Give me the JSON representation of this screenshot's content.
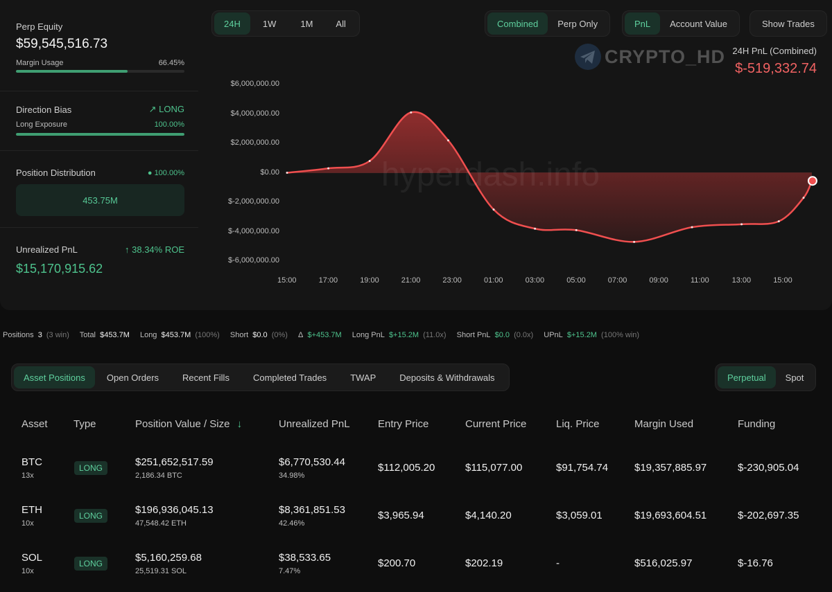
{
  "summary": {
    "perp_equity_label": "Perp Equity",
    "perp_equity": "$59,545,516.73",
    "margin_usage_label": "Margin Usage",
    "margin_usage": "66.45%",
    "margin_usage_fraction": 0.6645,
    "direction_bias_label": "Direction Bias",
    "direction_bias": "LONG",
    "long_exposure_label": "Long Exposure",
    "long_exposure": "100.00%",
    "long_exposure_fraction": 1.0,
    "position_distribution_label": "Position Distribution",
    "position_distribution_pct": "100.00%",
    "position_distribution_value": "453.75M",
    "unrealized_pnl_label": "Unrealized PnL",
    "roe": "38.34% ROE",
    "unrealized_pnl": "$15,170,915.62"
  },
  "range_tabs": [
    "24H",
    "1W",
    "1M",
    "All"
  ],
  "view_tabs": [
    "Combined",
    "Perp Only"
  ],
  "metric_tabs": [
    "PnL",
    "Account Value"
  ],
  "show_trades_label": "Show Trades",
  "watermark_brand": "CRYPTO_HD",
  "watermark_site": "hyperdash.info",
  "pnl_header": {
    "label": "24H PnL (Combined)",
    "value": "$-519,332.74"
  },
  "chart_data": {
    "type": "area",
    "title": "24H PnL (Combined)",
    "x": [
      "15:00",
      "17:00",
      "19:00",
      "21:00",
      "23:00",
      "01:00",
      "03:00",
      "05:00",
      "07:00",
      "09:00",
      "11:00",
      "13:00",
      "15:00"
    ],
    "y_ticks": [
      "$6,000,000.00",
      "$4,000,000.00",
      "$2,000,000.00",
      "$0.00",
      "$-2,000,000.00",
      "$-4,000,000.00",
      "$-6,000,000.00"
    ],
    "ylim": [
      -6000000,
      6000000
    ],
    "series": [
      {
        "name": "PnL",
        "points": [
          [
            0,
            0
          ],
          [
            1,
            300000
          ],
          [
            2,
            800000
          ],
          [
            3,
            4100000
          ],
          [
            3.9,
            2200000
          ],
          [
            5,
            -2500000
          ],
          [
            6,
            -3800000
          ],
          [
            7,
            -3900000
          ],
          [
            8.4,
            -4700000
          ],
          [
            9.8,
            -3700000
          ],
          [
            11,
            -3500000
          ],
          [
            11.9,
            -3300000
          ],
          [
            12.5,
            -1700000
          ],
          [
            12.7,
            -550000
          ]
        ],
        "last_value": -519332.74
      }
    ]
  },
  "stats": {
    "positions_label": "Positions",
    "positions": "3",
    "positions_note": "(3 win)",
    "total_label": "Total",
    "total": "$453.7M",
    "long_label": "Long",
    "long": "$453.7M",
    "long_note": "(100%)",
    "short_label": "Short",
    "short": "$0.0",
    "short_note": "(0%)",
    "delta_label": "Δ",
    "delta": "$+453.7M",
    "long_pnl_label": "Long PnL",
    "long_pnl": "$+15.2M",
    "long_pnl_note": "(11.0x)",
    "short_pnl_label": "Short PnL",
    "short_pnl": "$0.0",
    "short_pnl_note": "(0.0x)",
    "upnl_label": "UPnL",
    "upnl": "$+15.2M",
    "upnl_note": "(100% win)"
  },
  "bottom_tabs": [
    "Asset Positions",
    "Open Orders",
    "Recent Fills",
    "Completed Trades",
    "TWAP",
    "Deposits & Withdrawals"
  ],
  "market_tabs": [
    "Perpetual",
    "Spot"
  ],
  "table": {
    "headers": [
      "Asset",
      "Type",
      "Position Value / Size",
      "Unrealized PnL",
      "Entry Price",
      "Current Price",
      "Liq. Price",
      "Margin Used",
      "Funding"
    ],
    "rows": [
      {
        "asset": "BTC",
        "lev": "13x",
        "type": "LONG",
        "value": "$251,652,517.59",
        "size": "2,186.34 BTC",
        "pnl": "$6,770,530.44",
        "pnl_pct": "34.98%",
        "entry": "$112,005.20",
        "current": "$115,077.00",
        "liq": "$91,754.74",
        "margin": "$19,357,885.97",
        "funding": "$-230,905.04"
      },
      {
        "asset": "ETH",
        "lev": "10x",
        "type": "LONG",
        "value": "$196,936,045.13",
        "size": "47,548.42 ETH",
        "pnl": "$8,361,851.53",
        "pnl_pct": "42.46%",
        "entry": "$3,965.94",
        "current": "$4,140.20",
        "liq": "$3,059.01",
        "margin": "$19,693,604.51",
        "funding": "$-202,697.35"
      },
      {
        "asset": "SOL",
        "lev": "10x",
        "type": "LONG",
        "value": "$5,160,259.68",
        "size": "25,519.31 SOL",
        "pnl": "$38,533.65",
        "pnl_pct": "7.47%",
        "entry": "$200.70",
        "current": "$202.19",
        "liq": "-",
        "margin": "$516,025.97",
        "funding": "$-16.76"
      }
    ]
  }
}
